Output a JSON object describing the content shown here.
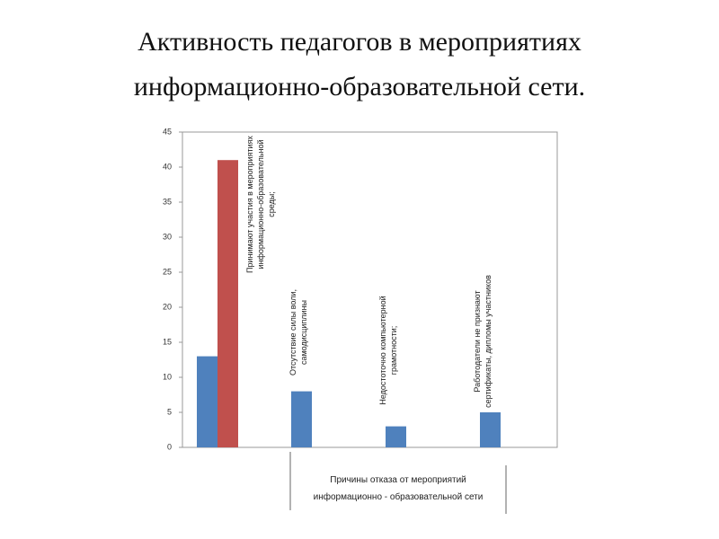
{
  "chart_data": {
    "type": "bar",
    "title": "Активность педагогов в мероприятиях информационно-образовательной сети.",
    "categories": [
      "Принимают участия в мероприятиях информационно-образовательной среды;",
      "Отсутствие силы воли, самодисциплины",
      "Недостоточно компьютерной грамотности;",
      "Работодатели не признают сертификаты, дипломы участников"
    ],
    "series": [
      {
        "color": "#4f81bd",
        "values": [
          13,
          8,
          3,
          5
        ]
      },
      {
        "color": "#c0504d",
        "values": [
          41,
          null,
          null,
          null
        ]
      }
    ],
    "ylim": [
      0,
      45
    ],
    "yticks": [
      0,
      5,
      10,
      15,
      20,
      25,
      30,
      35,
      40,
      45
    ],
    "grid": false,
    "annotation": "Причины отказа от мероприятий информационно - образовательной сети"
  }
}
